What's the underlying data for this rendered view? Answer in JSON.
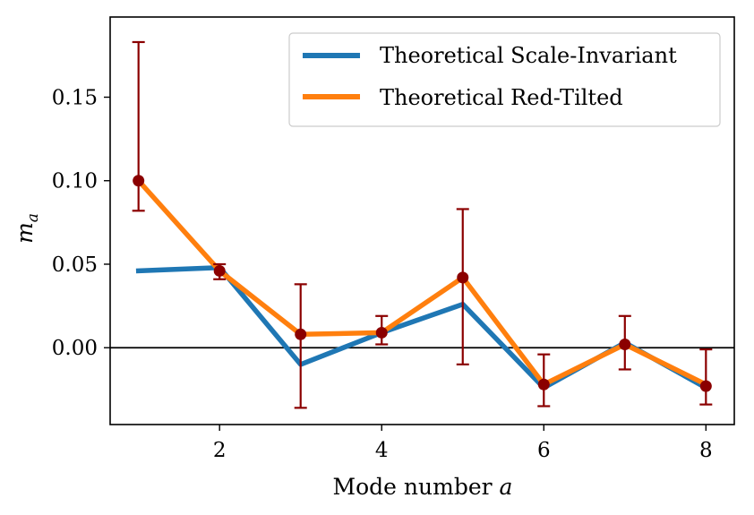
{
  "chart_data": {
    "type": "line",
    "title": "",
    "xlabel": "Mode number",
    "xlabel_var": "a",
    "ylabel_var": "m",
    "ylabel_sub": "a",
    "xlim": [
      0.65,
      8.35
    ],
    "ylim": [
      -0.046,
      0.198
    ],
    "xticks": [
      2,
      4,
      6,
      8
    ],
    "yticks": [
      0.0,
      0.05,
      0.1,
      0.15
    ],
    "ytick_labels": [
      "0.00",
      "0.05",
      "0.10",
      "0.15"
    ],
    "xtick_labels": [
      "2",
      "4",
      "6",
      "8"
    ],
    "reference_line_y": 0,
    "legend_position": "upper-right",
    "series": [
      {
        "name": "Theoretical Scale-Invariant",
        "color": "#1f77b4",
        "x": [
          1,
          2,
          3,
          4,
          5,
          6,
          7,
          8
        ],
        "values": [
          0.046,
          0.048,
          -0.01,
          0.009,
          0.026,
          -0.024,
          0.003,
          -0.024
        ]
      },
      {
        "name": "Theoretical Red-Tilted",
        "color": "#ff7f0e",
        "x": [
          1,
          2,
          3,
          4,
          5,
          6,
          7,
          8
        ],
        "values": [
          0.1,
          0.046,
          0.008,
          0.009,
          0.042,
          -0.022,
          0.002,
          -0.022
        ]
      }
    ],
    "measurements": {
      "color": "#8b0000",
      "x": [
        1,
        2,
        3,
        4,
        5,
        6,
        7,
        8
      ],
      "values": [
        0.1,
        0.046,
        0.008,
        0.009,
        0.042,
        -0.022,
        0.002,
        -0.023
      ],
      "err_low": [
        0.082,
        0.041,
        -0.036,
        0.002,
        -0.01,
        -0.035,
        -0.013,
        -0.034
      ],
      "err_high": [
        0.183,
        0.05,
        0.038,
        0.019,
        0.083,
        -0.004,
        0.019,
        -0.001
      ]
    }
  }
}
